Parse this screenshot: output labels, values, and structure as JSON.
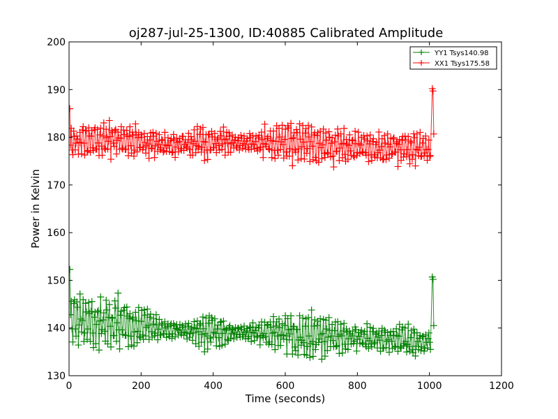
{
  "chart_data": {
    "type": "line",
    "title": "oj287-jul-25-1300, ID:40885 Calibrated Amplitude",
    "xlabel": "Time (seconds)",
    "ylabel": "Power in Kelvin",
    "xlim": [
      0,
      1200
    ],
    "ylim": [
      130,
      200
    ],
    "xticks": [
      0,
      200,
      400,
      600,
      800,
      1000,
      1200
    ],
    "yticks": [
      130,
      140,
      150,
      160,
      170,
      180,
      190,
      200
    ],
    "grid": false,
    "legend_position": "top-right",
    "marker": "+",
    "series": [
      {
        "name": "YY1 Tsys140.98",
        "color": "#008000",
        "base": 140.98,
        "start_spike": 152.3,
        "end_spike": 150.7,
        "end_value": 140.5,
        "x_start": 2,
        "x_end": 1005,
        "envelope": [
          [
            0,
            6.0
          ],
          [
            100,
            5.8
          ],
          [
            200,
            4.5
          ],
          [
            250,
            2.0
          ],
          [
            320,
            2.0
          ],
          [
            380,
            4.0
          ],
          [
            420,
            3.0
          ],
          [
            470,
            1.5
          ],
          [
            560,
            3.0
          ],
          [
            620,
            5.0
          ],
          [
            700,
            4.5
          ],
          [
            780,
            3.0
          ],
          [
            850,
            2.5
          ],
          [
            950,
            3.0
          ],
          [
            1005,
            3.0
          ]
        ],
        "trend": [
          [
            0,
            141.5
          ],
          [
            200,
            140.5
          ],
          [
            300,
            139.5
          ],
          [
            500,
            139.0
          ],
          [
            700,
            138.5
          ],
          [
            900,
            137.5
          ],
          [
            1005,
            137.2
          ]
        ]
      },
      {
        "name": "XX1 Tsys175.58",
        "color": "#ff0000",
        "base": 175.58,
        "start_spike": 186.0,
        "end_spike": 190.2,
        "end_value": 180.7,
        "x_start": 2,
        "x_end": 1005,
        "envelope": [
          [
            0,
            4.5
          ],
          [
            100,
            4.0
          ],
          [
            200,
            3.5
          ],
          [
            260,
            2.5
          ],
          [
            330,
            2.5
          ],
          [
            380,
            3.5
          ],
          [
            430,
            3.0
          ],
          [
            480,
            1.5
          ],
          [
            560,
            3.5
          ],
          [
            620,
            4.5
          ],
          [
            700,
            4.5
          ],
          [
            780,
            3.5
          ],
          [
            850,
            3.0
          ],
          [
            950,
            3.5
          ],
          [
            1005,
            3.0
          ]
        ],
        "trend": [
          [
            0,
            179.0
          ],
          [
            150,
            179.5
          ],
          [
            250,
            178.5
          ],
          [
            400,
            179.0
          ],
          [
            550,
            179.0
          ],
          [
            700,
            178.5
          ],
          [
            850,
            177.8
          ],
          [
            1005,
            177.5
          ]
        ]
      }
    ]
  }
}
